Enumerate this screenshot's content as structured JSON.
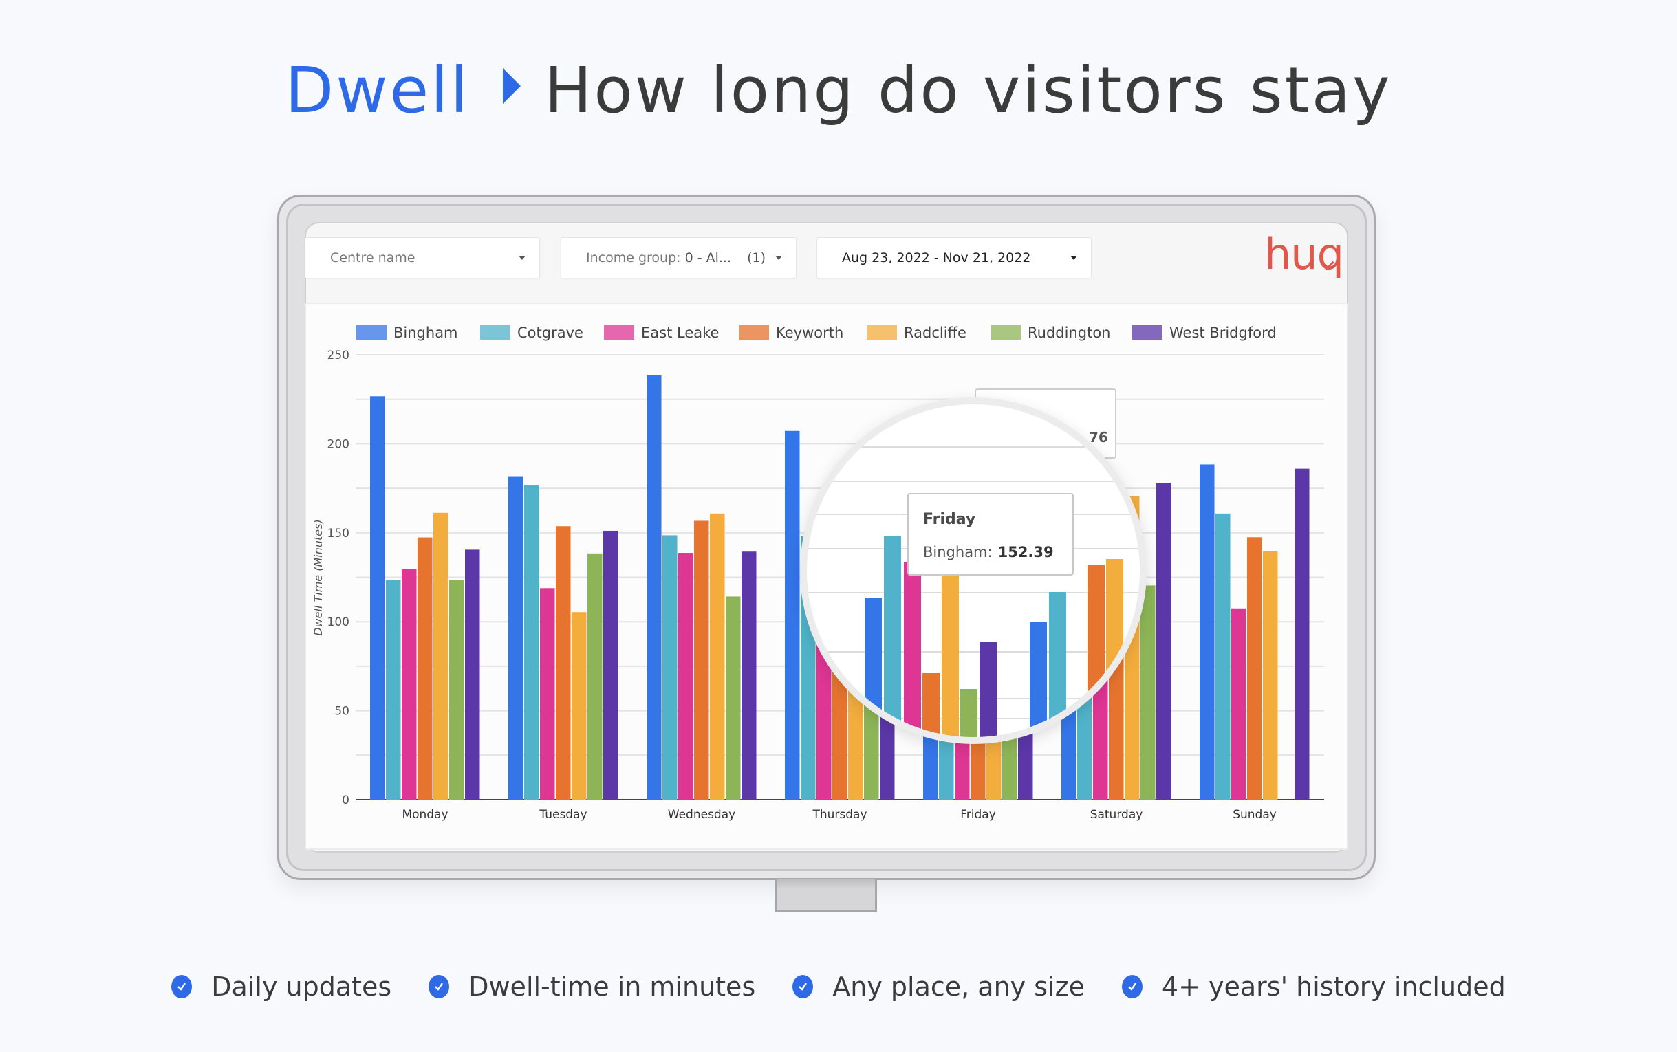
{
  "headline": {
    "brand": "Dwell",
    "title": "How long do visitors stay"
  },
  "filters": {
    "centre": {
      "label": "Centre name"
    },
    "income": {
      "prefix": "Income group:",
      "value": "0 - Al...",
      "count": "(1)"
    },
    "date": {
      "label": "Aug 23, 2022 - Nov 21, 2022"
    }
  },
  "logo": {
    "text": "huq",
    "color": "#e0584a"
  },
  "tooltip": {
    "title": "Friday",
    "series": "Bingham:",
    "value": "152.39"
  },
  "background_tooltip": {
    "partial_value": "76"
  },
  "features": [
    {
      "label": "Daily updates"
    },
    {
      "label": "Dwell-time in minutes"
    },
    {
      "label": "Any place, any size"
    },
    {
      "label": "4+ years' history included"
    }
  ],
  "colors": {
    "accent": "#2f6ae6",
    "text": "#3b3b3b"
  },
  "chart_data": {
    "type": "bar",
    "title": "",
    "xlabel": "",
    "ylabel": "Dwell Time (Minutes)",
    "ylim": [
      0,
      250
    ],
    "yticks": [
      0,
      50,
      100,
      150,
      200,
      250
    ],
    "grid": true,
    "legend_position": "top",
    "categories": [
      "Monday",
      "Tuesday",
      "Wednesday",
      "Thursday",
      "Friday",
      "Saturday",
      "Sunday"
    ],
    "series": [
      {
        "name": "Bingham",
        "color": "#3475e8",
        "values": [
          226.7,
          181.4,
          238.4,
          207.2,
          152.39,
          160,
          188.4
        ]
      },
      {
        "name": "Cotgrave",
        "color": "#50b3c9",
        "values": [
          123.3,
          176.8,
          148.6,
          148,
          125,
          155,
          160.8
        ]
      },
      {
        "name": "East Leake",
        "color": "#de3693",
        "values": [
          129.7,
          118.9,
          138.7,
          135,
          118,
          140,
          107.5
        ]
      },
      {
        "name": "Keyworth",
        "color": "#e6742f",
        "values": [
          147.4,
          153.7,
          156.7,
          128,
          112,
          158,
          147.5
        ]
      },
      {
        "name": "Radcliffe",
        "color": "#f3ad3d",
        "values": [
          161.2,
          105.4,
          160.8,
          122,
          118,
          170.5,
          139.6
        ]
      },
      {
        "name": "Ruddington",
        "color": "#8db557",
        "values": [
          123.3,
          138.4,
          114.2,
          118,
          110,
          120.4,
          null
        ]
      },
      {
        "name": "West Bridgford",
        "color": "#5b37a8",
        "values": [
          140.5,
          151.1,
          139.4,
          112,
          110,
          178.1,
          186.0
        ]
      }
    ],
    "legend": [
      "Bingham",
      "Cotgrave",
      "East Leake",
      "Keyworth",
      "Radcliffe",
      "Ruddington",
      "West Bridgford"
    ]
  }
}
